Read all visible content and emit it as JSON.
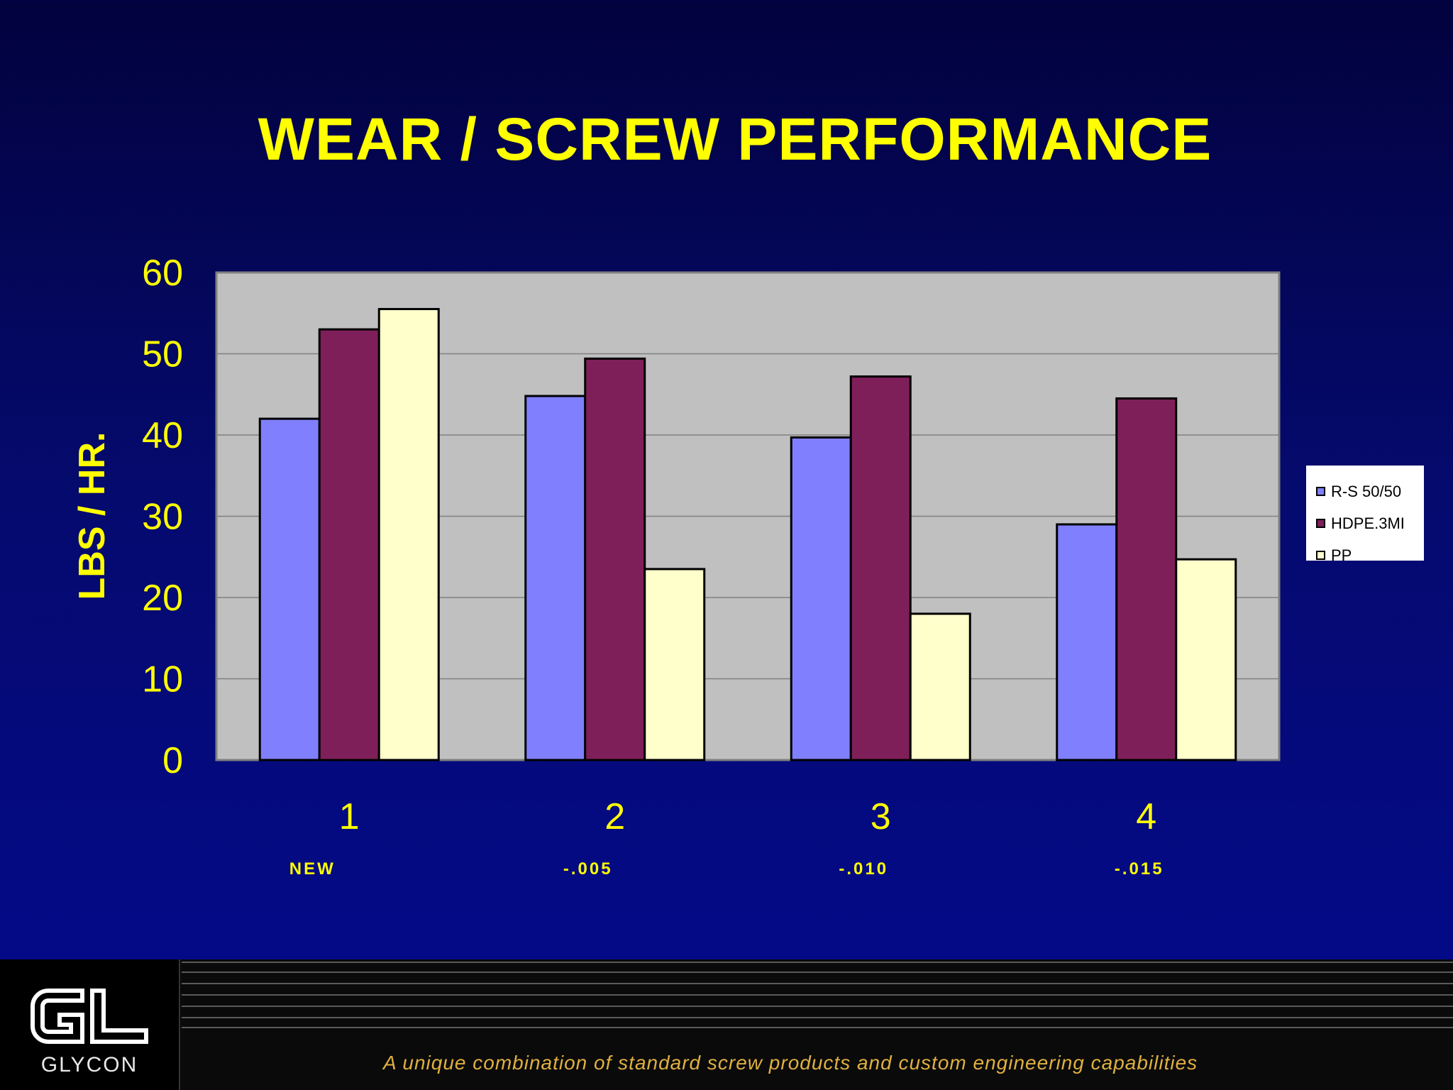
{
  "title": "WEAR / SCREW PERFORMANCE",
  "footer": {
    "logo_text": "GLYCON",
    "tagline": "A unique combination of standard screw products and custom engineering capabilities"
  },
  "colors": {
    "title": "#ffff00",
    "plot_background": "#c0c0c0",
    "series": [
      "#8080ff",
      "#7f1f5a",
      "#ffffcc"
    ]
  },
  "chart_data": {
    "type": "bar",
    "title": "WEAR / SCREW PERFORMANCE",
    "xlabel": "",
    "ylabel": "LBS / HR.",
    "ylim": [
      0,
      60
    ],
    "yticks": [
      0,
      10,
      20,
      30,
      40,
      50,
      60
    ],
    "categories": [
      "1",
      "2",
      "3",
      "4"
    ],
    "category_sublabels": [
      "NEW",
      "-.005",
      "-.010",
      "-.015"
    ],
    "series": [
      {
        "name": "R-S 50/50",
        "values": [
          42,
          44.8,
          39.7,
          29
        ]
      },
      {
        "name": "HDPE.3MI",
        "values": [
          53,
          49.4,
          47.2,
          44.5
        ]
      },
      {
        "name": "PP",
        "values": [
          55.5,
          23.5,
          18,
          24.7
        ]
      }
    ],
    "grid": true,
    "legend_position": "right"
  }
}
